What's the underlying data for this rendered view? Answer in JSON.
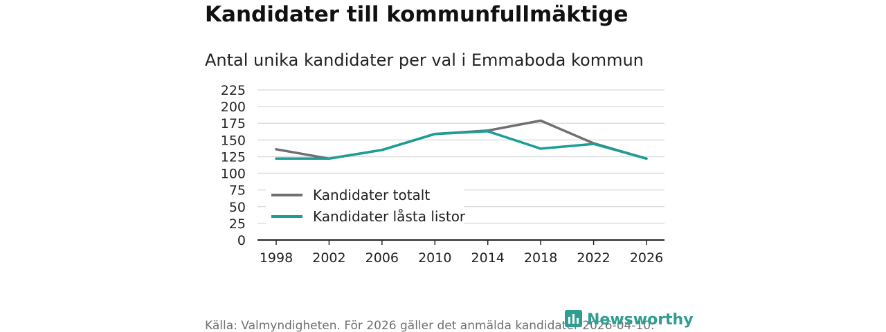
{
  "chart_data": {
    "type": "line",
    "title": "Kandidater till kommunfullmäktige",
    "subtitle": "Antal unika kandidater per val i Emmaboda kommun",
    "x": [
      "1998",
      "2002",
      "2006",
      "2010",
      "2014",
      "2018",
      "2022",
      "2026"
    ],
    "y_ticks": [
      0,
      25,
      50,
      75,
      100,
      125,
      150,
      175,
      200,
      225
    ],
    "ylim": [
      0,
      225
    ],
    "grid": true,
    "legend_position": "bottom-left",
    "series": [
      {
        "name": "Kandidater totalt",
        "color": "#6e6e73",
        "values": [
          136,
          122,
          135,
          159,
          164,
          179,
          145,
          122
        ]
      },
      {
        "name": "Kandidater låsta listor",
        "color": "#1a9e96",
        "values": [
          122,
          122,
          135,
          159,
          163,
          137,
          144,
          122
        ]
      }
    ],
    "footer": "Källa: Valmyndigheten. För 2026 gäller det anmälda kandidater 2026-04-10.",
    "brand": "Newsworthy"
  }
}
